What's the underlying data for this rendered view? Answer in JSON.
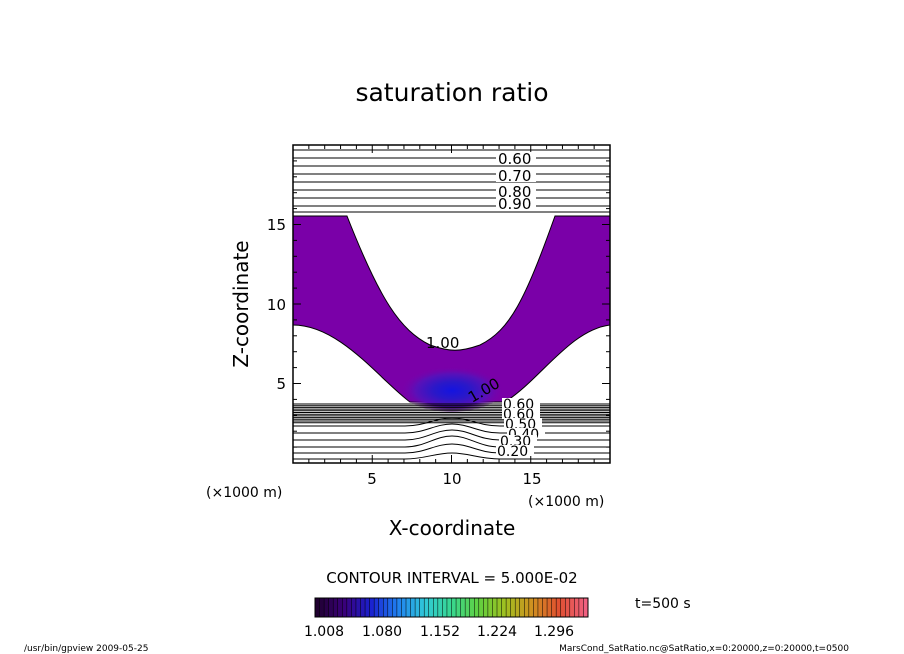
{
  "chart_data": {
    "type": "contour",
    "title": "saturation ratio",
    "xlabel": "X-coordinate",
    "ylabel": "Z-coordinate",
    "x_unit": "(×1000 m)",
    "y_unit": "(×1000 m)",
    "xlim": [
      0,
      20
    ],
    "ylim": [
      0,
      20
    ],
    "x_ticks": [
      "5",
      "10",
      "15"
    ],
    "y_ticks": [
      "5",
      "10",
      "15"
    ],
    "contour_interval_label": "CONTOUR INTERVAL = 5.000E-02",
    "time_label": "t=500 s",
    "upper_contour_labels": [
      "0.60",
      "0.70",
      "0.80",
      "0.90"
    ],
    "lower_contour_labels": [
      "0.60",
      "0.60",
      "0.50",
      "0.40",
      "0.30",
      "0.20"
    ],
    "contour_100_labels": [
      "1.00",
      "1.00"
    ],
    "colorbar": {
      "ticks": [
        "1.008",
        "1.080",
        "1.152",
        "1.224",
        "1.296"
      ],
      "colors": [
        "#200030",
        "#3a007a",
        "#1a20d0",
        "#2080f0",
        "#30c8d8",
        "#38d890",
        "#60d040",
        "#a0c020",
        "#d09020",
        "#e05030",
        "#f06080"
      ]
    },
    "fill_color": "#7a00a8"
  },
  "footer": {
    "left": "/usr/bin/gpview   2009-05-25",
    "right": "MarsCond_SatRatio.nc@SatRatio,x=0:20000,z=0:20000,t=0500"
  }
}
